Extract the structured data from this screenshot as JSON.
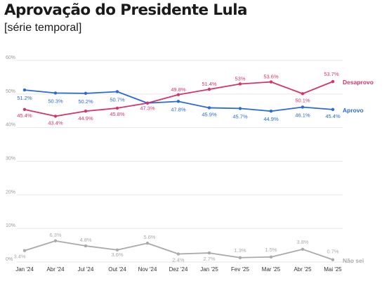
{
  "header": {
    "title": "Aprovação do Presidente Lula",
    "subtitle": "[série temporal]"
  },
  "chart_data": {
    "type": "line",
    "title": "Aprovação do Presidente Lula",
    "subtitle": "[série temporal]",
    "xlabel": "",
    "ylabel": "",
    "ylim": [
      0,
      60
    ],
    "yticks": [
      "0%",
      "10%",
      "20%",
      "30%",
      "40%",
      "50%",
      "60%"
    ],
    "grid": "horizontal",
    "legend": "direct labels at line ends (right)",
    "categories": [
      "Jan '24",
      "Abr '24",
      "Jul '24",
      "Out '24",
      "Nov '24",
      "Dez '24",
      "Jan '25",
      "Fev '25",
      "Mar '25",
      "Abr '25",
      "Mai '25"
    ],
    "series": [
      {
        "name": "Aprovo",
        "color": "#2a6ad8",
        "values": [
          51.2,
          50.3,
          50.2,
          50.7,
          47.3,
          47.8,
          45.9,
          45.7,
          44.9,
          46.1,
          45.4
        ],
        "labels": [
          "51.2%",
          "50.3%",
          "50.2%",
          "50.7%",
          "",
          "47.8%",
          "45.9%",
          "45.7%",
          "44.9%",
          "46.1%",
          "45.4%"
        ]
      },
      {
        "name": "Desaprovo",
        "color": "#d6336c",
        "values": [
          45.4,
          43.4,
          44.9,
          45.8,
          47.3,
          49.8,
          51.4,
          53.0,
          53.6,
          50.1,
          53.7
        ],
        "labels": [
          "45.4%",
          "43.4%",
          "44.9%",
          "45.8%",
          "47.3%",
          "49.8%",
          "51.4%",
          "53%",
          "53.6%",
          "50.1%",
          "53.7%"
        ]
      },
      {
        "name": "Não sei",
        "color": "#aaaaaa",
        "values": [
          3.4,
          6.3,
          4.8,
          3.6,
          5.6,
          2.4,
          2.7,
          1.3,
          1.5,
          3.8,
          0.7
        ],
        "labels": [
          "3.4%",
          "6.3%",
          "4.8%",
          "3.6%",
          "5.6%",
          "2.4%",
          "2.7%",
          "1.3%",
          "1.5%",
          "3.8%",
          "0.7%"
        ]
      }
    ]
  }
}
